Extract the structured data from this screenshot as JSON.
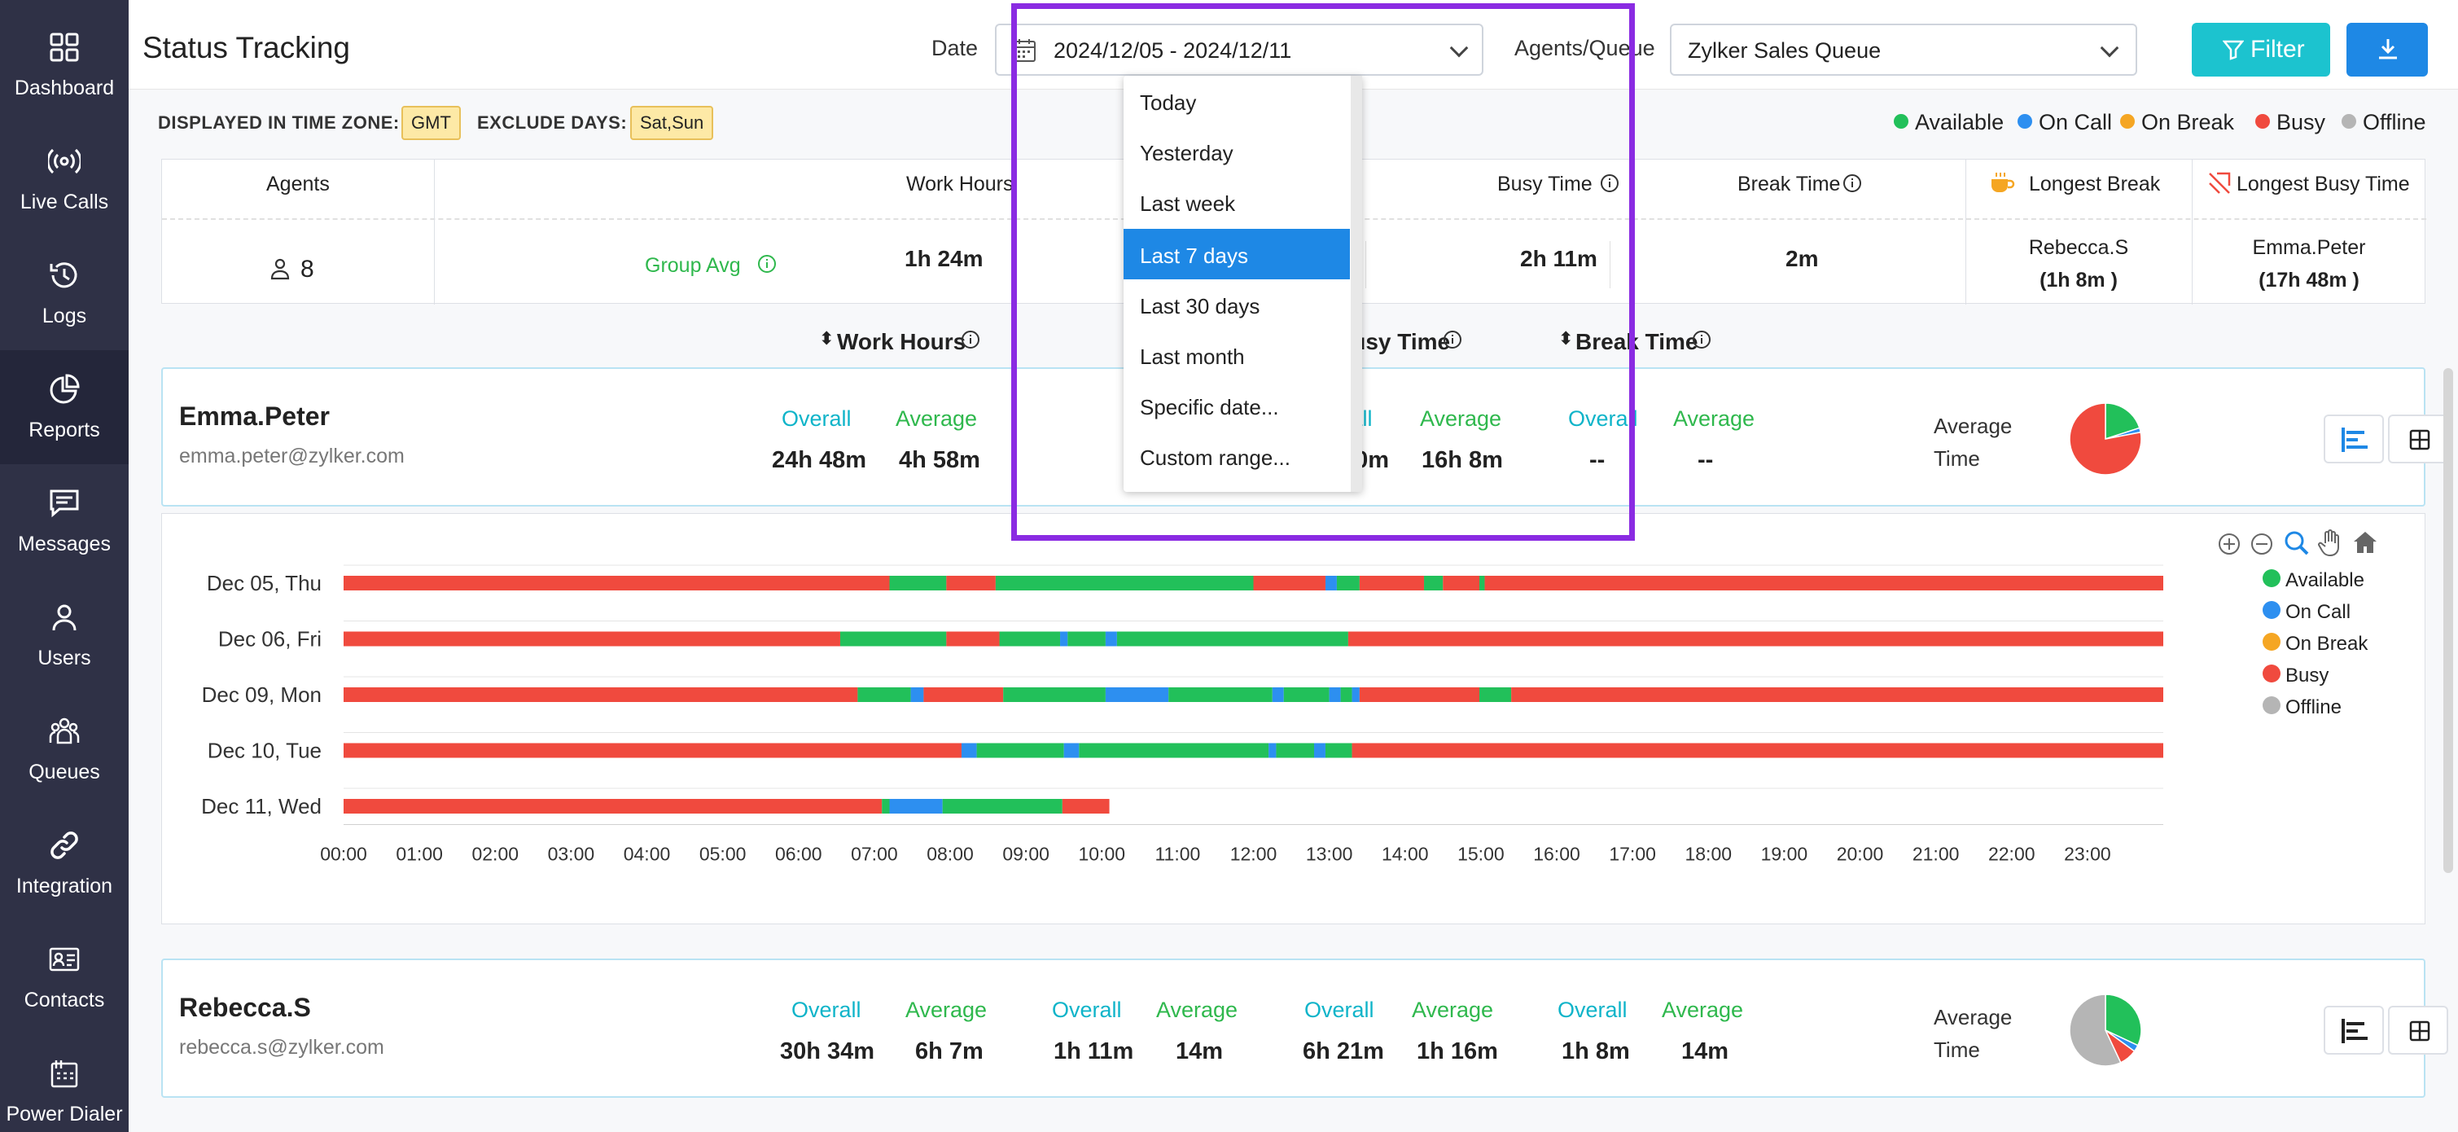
{
  "sidebar": {
    "items": [
      {
        "label": "Dashboard",
        "icon": "dashboard-icon"
      },
      {
        "label": "Live Calls",
        "icon": "broadcast-icon"
      },
      {
        "label": "Logs",
        "icon": "history-icon"
      },
      {
        "label": "Reports",
        "icon": "pie-chart-icon",
        "active": true
      },
      {
        "label": "Messages",
        "icon": "message-icon"
      },
      {
        "label": "Users",
        "icon": "user-icon"
      },
      {
        "label": "Queues",
        "icon": "queues-icon"
      },
      {
        "label": "Integration",
        "icon": "link-icon"
      },
      {
        "label": "Contacts",
        "icon": "contact-card-icon"
      },
      {
        "label": "Power Dialer",
        "icon": "dialer-icon"
      }
    ]
  },
  "header": {
    "title": "Status Tracking",
    "date_label": "Date",
    "date_value": "2024/12/05 - 2024/12/11",
    "agents_label": "Agents/Queue",
    "agents_value": "Zylker Sales Queue",
    "filter_label": "Filter"
  },
  "subbar": {
    "timezone_label": "DISPLAYED IN TIME ZONE:",
    "timezone_value": "GMT",
    "exclude_label": "EXCLUDE DAYS:",
    "exclude_value": "Sat,Sun"
  },
  "legend": [
    {
      "label": "Available",
      "color": "#22c05a"
    },
    {
      "label": "On Call",
      "color": "#2d8ff0"
    },
    {
      "label": "On Break",
      "color": "#f5a623"
    },
    {
      "label": "Busy",
      "color": "#f04a3e"
    },
    {
      "label": "Offline",
      "color": "#b5b5b5"
    }
  ],
  "summary": {
    "agents_header": "Agents",
    "agents_count": "8",
    "group_avg": "Group Avg",
    "work_hours_header": "Work Hours",
    "work_hours_value": "1h 24m",
    "busy_header": "Busy Time",
    "busy_value": "2h 11m",
    "break_header": "Break Time",
    "break_value": "2m",
    "longest_break_header": "Longest Break",
    "longest_break_name": "Rebecca.S",
    "longest_break_value": "(1h 8m )",
    "longest_busy_header": "Longest Busy Time",
    "longest_busy_name": "Emma.Peter",
    "longest_busy_value": "(17h 48m )"
  },
  "sort_headers": {
    "work_hours": "Work Hours",
    "busy_time": "Busy Time",
    "break_time": "Break Time"
  },
  "agents": [
    {
      "name": "Emma.Peter",
      "email": "emma.peter@zylker.com",
      "overall_label": "Overall",
      "average_label": "Average",
      "work_overall": "24h 48m",
      "work_average": "4h 58m",
      "busy_overall": "80h 40m",
      "busy_average": "16h 8m",
      "break_overall": "--",
      "break_average": "--",
      "avg_time_label": "Average Time"
    },
    {
      "name": "Rebecca.S",
      "email": "rebecca.s@zylker.com",
      "overall_label": "Overall",
      "average_label": "Average",
      "work_overall": "30h 34m",
      "work_average": "6h 7m",
      "call_overall": "1h 11m",
      "call_average": "14m",
      "busy_overall": "6h 21m",
      "busy_average": "1h 16m",
      "break_overall": "1h 8m",
      "break_average": "14m",
      "avg_time_label": "Average Time"
    }
  ],
  "date_dropdown": {
    "options": [
      "Today",
      "Yesterday",
      "Last week",
      "Last 7 days",
      "Last 30 days",
      "Last month",
      "Specific date...",
      "Custom range..."
    ],
    "selected": "Last 7 days"
  },
  "chart_data": {
    "type": "timeline",
    "x_ticks": [
      "00:00",
      "01:00",
      "02:00",
      "03:00",
      "04:00",
      "05:00",
      "06:00",
      "07:00",
      "08:00",
      "09:00",
      "10:00",
      "11:00",
      "12:00",
      "13:00",
      "14:00",
      "15:00",
      "16:00",
      "17:00",
      "18:00",
      "19:00",
      "20:00",
      "21:00",
      "22:00",
      "23:00"
    ],
    "xlim": [
      0,
      24
    ],
    "rows": [
      {
        "label": "Dec 05, Thu",
        "segments": [
          [
            0,
            7.2,
            "Busy"
          ],
          [
            7.2,
            7.95,
            "Available"
          ],
          [
            7.95,
            8.6,
            "Busy"
          ],
          [
            8.6,
            12.0,
            "Available"
          ],
          [
            12.0,
            12.95,
            "Busy"
          ],
          [
            12.95,
            13.1,
            "On Call"
          ],
          [
            13.1,
            13.4,
            "Available"
          ],
          [
            13.4,
            14.25,
            "Busy"
          ],
          [
            14.25,
            14.5,
            "Available"
          ],
          [
            14.5,
            14.98,
            "Busy"
          ],
          [
            14.98,
            15.05,
            "Available"
          ],
          [
            15.05,
            24,
            "Busy"
          ]
        ]
      },
      {
        "label": "Dec 06, Fri",
        "segments": [
          [
            0,
            6.55,
            "Busy"
          ],
          [
            6.55,
            7.95,
            "Available"
          ],
          [
            7.95,
            8.65,
            "Busy"
          ],
          [
            8.65,
            9.45,
            "Available"
          ],
          [
            9.45,
            9.55,
            "On Call"
          ],
          [
            9.55,
            10.05,
            "Available"
          ],
          [
            10.05,
            10.2,
            "On Call"
          ],
          [
            10.2,
            13.25,
            "Available"
          ],
          [
            13.25,
            24,
            "Busy"
          ]
        ]
      },
      {
        "label": "Dec 09, Mon",
        "segments": [
          [
            0,
            6.78,
            "Busy"
          ],
          [
            6.78,
            7.48,
            "Available"
          ],
          [
            7.48,
            7.65,
            "On Call"
          ],
          [
            7.65,
            8.7,
            "Busy"
          ],
          [
            8.7,
            10.05,
            "Available"
          ],
          [
            10.05,
            10.88,
            "On Call"
          ],
          [
            10.88,
            12.25,
            "Available"
          ],
          [
            12.25,
            12.4,
            "On Call"
          ],
          [
            12.4,
            13.0,
            "Available"
          ],
          [
            13.0,
            13.15,
            "On Call"
          ],
          [
            13.15,
            13.3,
            "Available"
          ],
          [
            13.3,
            13.4,
            "On Call"
          ],
          [
            13.4,
            14.98,
            "Busy"
          ],
          [
            14.98,
            15.4,
            "Available"
          ],
          [
            15.4,
            24,
            "Busy"
          ]
        ]
      },
      {
        "label": "Dec 10, Tue",
        "segments": [
          [
            0,
            8.15,
            "Busy"
          ],
          [
            8.15,
            8.35,
            "On Call"
          ],
          [
            8.35,
            9.5,
            "Available"
          ],
          [
            9.5,
            9.7,
            "On Call"
          ],
          [
            9.7,
            12.2,
            "Available"
          ],
          [
            12.2,
            12.3,
            "On Call"
          ],
          [
            12.3,
            12.8,
            "Available"
          ],
          [
            12.8,
            12.95,
            "On Call"
          ],
          [
            12.95,
            13.3,
            "Available"
          ],
          [
            13.3,
            24,
            "Busy"
          ]
        ]
      },
      {
        "label": "Dec 11, Wed",
        "segments": [
          [
            0,
            7.1,
            "Busy"
          ],
          [
            7.1,
            7.2,
            "Available"
          ],
          [
            7.2,
            7.9,
            "On Call"
          ],
          [
            7.9,
            9.48,
            "Available"
          ],
          [
            9.48,
            10.1,
            "Busy"
          ]
        ]
      }
    ],
    "pies": [
      {
        "agent": "Emma.Peter",
        "slices": [
          {
            "label": "Available",
            "value": 20
          },
          {
            "label": "On Call",
            "value": 2
          },
          {
            "label": "Busy",
            "value": 78
          }
        ]
      },
      {
        "agent": "Rebecca.S",
        "slices": [
          {
            "label": "Available",
            "value": 32
          },
          {
            "label": "On Call",
            "value": 3
          },
          {
            "label": "Busy",
            "value": 8
          },
          {
            "label": "Offline",
            "value": 57
          }
        ]
      }
    ]
  }
}
